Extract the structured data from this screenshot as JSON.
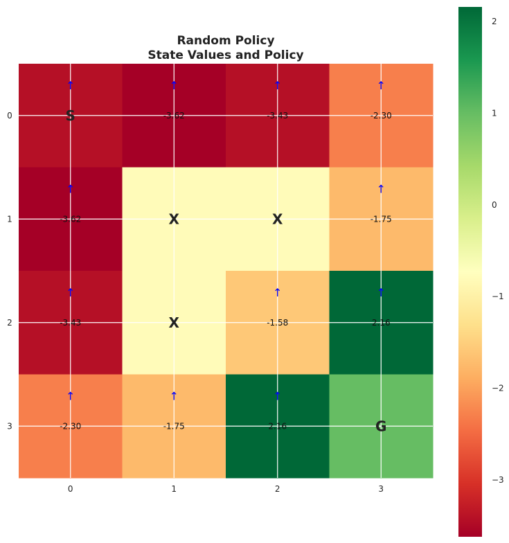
{
  "chart_data": {
    "type": "heatmap",
    "title": "Random Policy",
    "subtitle": "State Values and Policy",
    "x_ticks": [
      "0",
      "1",
      "2",
      "3"
    ],
    "y_ticks": [
      "0",
      "1",
      "2",
      "3"
    ],
    "grid": true,
    "colormap": "RdYlGn",
    "color_range": [
      -3.62,
      2.16
    ],
    "colorbar": {
      "placement": "right",
      "ticks": [
        {
          "value": 2,
          "label": "2"
        },
        {
          "value": 1,
          "label": "1"
        },
        {
          "value": 0,
          "label": "0"
        },
        {
          "value": -1,
          "label": "−1"
        },
        {
          "value": -2,
          "label": "−2"
        },
        {
          "value": -3,
          "label": "−3"
        }
      ]
    },
    "arrow_glyph": "↑",
    "arrow_color": "#0000ff",
    "cells": [
      [
        {
          "value": -3.43,
          "label": "S",
          "arrow": true
        },
        {
          "value": -3.62,
          "label": "-3.62",
          "arrow": true
        },
        {
          "value": -3.43,
          "label": "-3.43",
          "arrow": true
        },
        {
          "value": -2.3,
          "label": "-2.30",
          "arrow": true
        }
      ],
      [
        {
          "value": -3.62,
          "label": "-3.62",
          "arrow": true
        },
        {
          "value": -0.8,
          "label": "X",
          "arrow": false
        },
        {
          "value": -0.8,
          "label": "X",
          "arrow": false
        },
        {
          "value": -1.75,
          "label": "-1.75",
          "arrow": true
        }
      ],
      [
        {
          "value": -3.43,
          "label": "-3.43",
          "arrow": true
        },
        {
          "value": -0.8,
          "label": "X",
          "arrow": false
        },
        {
          "value": -1.58,
          "label": "-1.58",
          "arrow": true
        },
        {
          "value": 2.16,
          "label": "2.16",
          "arrow": true
        }
      ],
      [
        {
          "value": -2.3,
          "label": "-2.30",
          "arrow": true
        },
        {
          "value": -1.75,
          "label": "-1.75",
          "arrow": true
        },
        {
          "value": 2.16,
          "label": "2.16",
          "arrow": true
        },
        {
          "value": 1.0,
          "label": "G",
          "arrow": false
        }
      ]
    ]
  }
}
